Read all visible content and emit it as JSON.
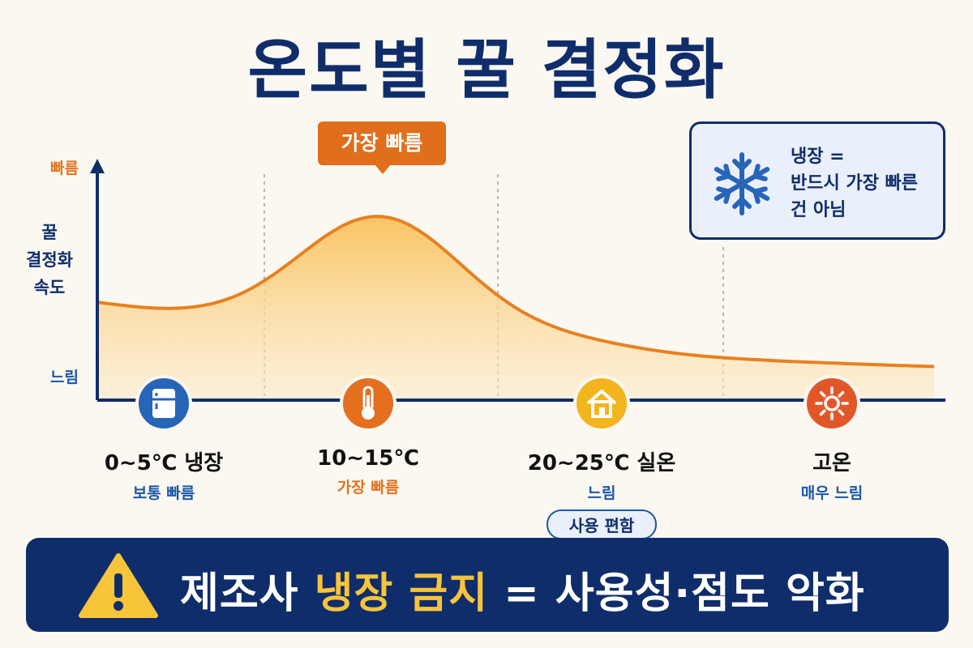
{
  "title": "온도별 꿀 결정화",
  "y_axis": {
    "label_lines": [
      "꿀",
      "결정화",
      "속도"
    ],
    "top": "빠름",
    "bottom": "느림"
  },
  "callout": "가장 빠름",
  "note": {
    "line1": "냉장 =",
    "line2": "반드시 가장 빠른",
    "line3": "건 아님",
    "icon": "snowflake-icon"
  },
  "ticks": [
    {
      "label": "0~5℃ 냉장",
      "sub": "보통 빠름",
      "sub_color": "#1c57a8",
      "icon": "refrigerator-icon",
      "icon_bg": "#2765b8"
    },
    {
      "label": "10~15℃",
      "sub": "가장 빠름",
      "sub_color": "#e2731b",
      "icon": "thermometer-icon",
      "icon_bg": "#e46f1f"
    },
    {
      "label": "20~25℃ 실온",
      "sub": "느림",
      "sub_color": "#1c57a8",
      "icon": "house-icon",
      "icon_bg": "#f2b51d",
      "badge": "사용 편함"
    },
    {
      "label": "고온",
      "sub": "매우 느림",
      "sub_color": "#1c57a8",
      "icon": "sun-icon",
      "icon_bg": "#e2572a"
    }
  ],
  "banner": {
    "prefix": "제조사",
    "highlight": "냉장 금지",
    "suffix": "= 사용성·점도 악화",
    "icon": "warning-icon"
  },
  "colors": {
    "navy": "#0f2d6b",
    "orange": "#e2731b",
    "blue": "#1c57a8",
    "yellow": "#f7c43a"
  },
  "chart_data": {
    "type": "area",
    "categories": [
      "0~5℃ 냉장",
      "10~15℃",
      "20~25℃ 실온",
      "고온"
    ],
    "series": [
      {
        "values": [
          0.45,
          1.0,
          0.35,
          0.08
        ]
      }
    ],
    "ylabel": "꿀 결정화 속도",
    "ylim": [
      0,
      1.05
    ],
    "grid": false
  }
}
